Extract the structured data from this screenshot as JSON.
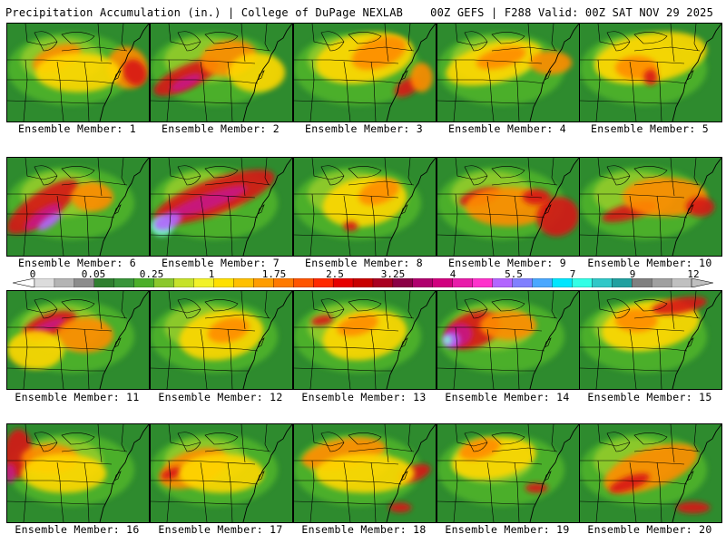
{
  "header": {
    "title_left": "Precipitation Accumulation (in.) | College of DuPage NEXLAB",
    "title_right": "00Z GEFS | F288 Valid: 00Z SAT NOV 29 2025"
  },
  "members": [
    {
      "label": "Ensemble Member: 1",
      "blobs": [
        [
          "#ff8c00",
          0.85,
          0.45,
          0.14,
          0.22,
          -30
        ],
        [
          "#d81818",
          0.9,
          0.5,
          0.08,
          0.14,
          -30
        ],
        [
          "#ff8c00",
          0.35,
          0.35,
          0.18,
          0.12,
          -20
        ],
        [
          "#ffd700",
          0.5,
          0.5,
          0.3,
          0.2,
          0
        ]
      ]
    },
    {
      "label": "Ensemble Member: 2",
      "blobs": [
        [
          "#d81818",
          0.25,
          0.55,
          0.25,
          0.12,
          -25
        ],
        [
          "#c71585",
          0.25,
          0.6,
          0.12,
          0.06,
          -25
        ],
        [
          "#ff8c00",
          0.55,
          0.35,
          0.2,
          0.18,
          -10
        ],
        [
          "#ffd700",
          0.75,
          0.5,
          0.2,
          0.2,
          0
        ]
      ]
    },
    {
      "label": "Ensemble Member: 3",
      "blobs": [
        [
          "#ffd700",
          0.5,
          0.35,
          0.35,
          0.25,
          -10
        ],
        [
          "#ff8c00",
          0.6,
          0.3,
          0.2,
          0.15,
          -20
        ],
        [
          "#d81818",
          0.8,
          0.65,
          0.1,
          0.08,
          -30
        ],
        [
          "#ff8c00",
          0.9,
          0.55,
          0.08,
          0.15,
          0
        ]
      ]
    },
    {
      "label": "Ensemble Member: 4",
      "blobs": [
        [
          "#ffd700",
          0.4,
          0.4,
          0.35,
          0.2,
          -15
        ],
        [
          "#ff8c00",
          0.45,
          0.35,
          0.18,
          0.1,
          -15
        ],
        [
          "#ff8c00",
          0.8,
          0.4,
          0.15,
          0.12,
          0
        ]
      ]
    },
    {
      "label": "Ensemble Member: 5",
      "blobs": [
        [
          "#ffd700",
          0.5,
          0.35,
          0.4,
          0.25,
          -10
        ],
        [
          "#ff8c00",
          0.4,
          0.45,
          0.15,
          0.12,
          0
        ],
        [
          "#d81818",
          0.5,
          0.55,
          0.05,
          0.08,
          0
        ]
      ]
    },
    {
      "label": "Ensemble Member: 6",
      "blobs": [
        [
          "#d81818",
          0.25,
          0.5,
          0.3,
          0.15,
          -35
        ],
        [
          "#c71585",
          0.25,
          0.6,
          0.15,
          0.07,
          -35
        ],
        [
          "#b266ff",
          0.3,
          0.65,
          0.1,
          0.05,
          -35
        ],
        [
          "#ff8c00",
          0.6,
          0.4,
          0.15,
          0.15,
          0
        ]
      ]
    },
    {
      "label": "Ensemble Member: 7",
      "blobs": [
        [
          "#d81818",
          0.45,
          0.4,
          0.45,
          0.18,
          -20
        ],
        [
          "#c71585",
          0.4,
          0.45,
          0.3,
          0.08,
          -20
        ],
        [
          "#7fffd4",
          0.08,
          0.7,
          0.08,
          0.1,
          0
        ],
        [
          "#b266ff",
          0.12,
          0.65,
          0.1,
          0.08,
          -20
        ]
      ]
    },
    {
      "label": "Ensemble Member: 8",
      "blobs": [
        [
          "#ffd700",
          0.5,
          0.45,
          0.3,
          0.25,
          -10
        ],
        [
          "#ff8c00",
          0.6,
          0.35,
          0.15,
          0.12,
          -20
        ],
        [
          "#d81818",
          0.4,
          0.7,
          0.05,
          0.05,
          0
        ]
      ]
    },
    {
      "label": "Ensemble Member: 9",
      "blobs": [
        [
          "#d81818",
          0.3,
          0.4,
          0.15,
          0.08,
          -15
        ],
        [
          "#ff8c00",
          0.5,
          0.5,
          0.3,
          0.2,
          0
        ],
        [
          "#d81818",
          0.85,
          0.6,
          0.15,
          0.2,
          -20
        ],
        [
          "#d81818",
          0.7,
          0.4,
          0.1,
          0.08,
          0
        ]
      ]
    },
    {
      "label": "Ensemble Member: 10",
      "blobs": [
        [
          "#d81818",
          0.35,
          0.55,
          0.2,
          0.08,
          -15
        ],
        [
          "#ff8c00",
          0.6,
          0.4,
          0.3,
          0.2,
          0
        ],
        [
          "#d81818",
          0.85,
          0.5,
          0.1,
          0.1,
          0
        ]
      ]
    },
    {
      "label": "Ensemble Member: 11",
      "blobs": [
        [
          "#d81818",
          0.3,
          0.35,
          0.2,
          0.12,
          -20
        ],
        [
          "#c71585",
          0.3,
          0.35,
          0.12,
          0.05,
          -20
        ],
        [
          "#ff8c00",
          0.55,
          0.45,
          0.2,
          0.18,
          0
        ],
        [
          "#ffd700",
          0.2,
          0.6,
          0.2,
          0.2,
          0
        ]
      ]
    },
    {
      "label": "Ensemble Member: 12",
      "blobs": [
        [
          "#ffd700",
          0.5,
          0.45,
          0.3,
          0.25,
          -10
        ],
        [
          "#ff8c00",
          0.55,
          0.4,
          0.15,
          0.12,
          -15
        ]
      ]
    },
    {
      "label": "Ensemble Member: 13",
      "blobs": [
        [
          "#ffd700",
          0.5,
          0.45,
          0.3,
          0.25,
          -10
        ],
        [
          "#ff8c00",
          0.45,
          0.35,
          0.15,
          0.1,
          -15
        ],
        [
          "#d81818",
          0.2,
          0.3,
          0.08,
          0.05,
          -10
        ]
      ]
    },
    {
      "label": "Ensemble Member: 14",
      "blobs": [
        [
          "#d81818",
          0.25,
          0.4,
          0.2,
          0.18,
          -20
        ],
        [
          "#c71585",
          0.15,
          0.45,
          0.1,
          0.12,
          -20
        ],
        [
          "#b266ff",
          0.1,
          0.5,
          0.06,
          0.08,
          -20
        ],
        [
          "#7fffd4",
          0.07,
          0.5,
          0.03,
          0.05,
          0
        ],
        [
          "#ff8c00",
          0.5,
          0.35,
          0.2,
          0.15,
          0
        ]
      ]
    },
    {
      "label": "Ensemble Member: 15",
      "blobs": [
        [
          "#ffd700",
          0.5,
          0.35,
          0.35,
          0.25,
          -10
        ],
        [
          "#d81818",
          0.7,
          0.15,
          0.2,
          0.08,
          -10
        ],
        [
          "#ff8c00",
          0.4,
          0.3,
          0.15,
          0.12,
          0
        ]
      ]
    },
    {
      "label": "Ensemble Member: 16",
      "blobs": [
        [
          "#d81818",
          0.08,
          0.3,
          0.1,
          0.25,
          0
        ],
        [
          "#c71585",
          0.02,
          0.5,
          0.04,
          0.1,
          0
        ],
        [
          "#ff8c00",
          0.3,
          0.35,
          0.2,
          0.15,
          0
        ],
        [
          "#ffd700",
          0.4,
          0.5,
          0.3,
          0.2,
          0
        ]
      ]
    },
    {
      "label": "Ensemble Member: 17",
      "blobs": [
        [
          "#ff8c00",
          0.3,
          0.45,
          0.25,
          0.18,
          -20
        ],
        [
          "#d81818",
          0.15,
          0.5,
          0.08,
          0.05,
          -20
        ],
        [
          "#ffd700",
          0.5,
          0.5,
          0.3,
          0.2,
          0
        ]
      ]
    },
    {
      "label": "Ensemble Member: 18",
      "blobs": [
        [
          "#ff8c00",
          0.35,
          0.3,
          0.3,
          0.15,
          -10
        ],
        [
          "#d81818",
          0.85,
          0.5,
          0.12,
          0.08,
          -20
        ],
        [
          "#d81818",
          0.75,
          0.85,
          0.08,
          0.05,
          0
        ],
        [
          "#ffd700",
          0.5,
          0.5,
          0.35,
          0.2,
          0
        ]
      ]
    },
    {
      "label": "Ensemble Member: 19",
      "blobs": [
        [
          "#ffd700",
          0.4,
          0.35,
          0.3,
          0.2,
          -10
        ],
        [
          "#ff8c00",
          0.3,
          0.25,
          0.15,
          0.1,
          -15
        ],
        [
          "#d81818",
          0.7,
          0.65,
          0.08,
          0.05,
          0
        ]
      ]
    },
    {
      "label": "Ensemble Member: 20",
      "blobs": [
        [
          "#ff8c00",
          0.5,
          0.45,
          0.35,
          0.2,
          -20
        ],
        [
          "#d81818",
          0.35,
          0.6,
          0.15,
          0.07,
          -20
        ],
        [
          "#d81818",
          0.8,
          0.85,
          0.12,
          0.06,
          0
        ]
      ]
    }
  ],
  "colorbar": {
    "labels": [
      "0",
      "0.05",
      "0.25",
      "1",
      "1.75",
      "2.5",
      "3.25",
      "4",
      "5.5",
      "7",
      "9",
      "12"
    ],
    "colors": [
      "#dcdcdc",
      "#b4b4b4",
      "#8c8c8c",
      "#2f7f2f",
      "#39953a",
      "#4caf2a",
      "#8bc82c",
      "#c6e22a",
      "#f2f22a",
      "#ffe000",
      "#ffc000",
      "#ff9d00",
      "#ff7a00",
      "#ff5500",
      "#ff2a00",
      "#e60000",
      "#c80000",
      "#aa0020",
      "#8b0045",
      "#b0006e",
      "#d1007f",
      "#e81caa",
      "#ff33cc",
      "#b266ff",
      "#8080ff",
      "#4aa8ff",
      "#00e6ff",
      "#33ffe6",
      "#30c8c8",
      "#20a0a0",
      "#808080",
      "#a0a0a0",
      "#c0c0c0"
    ]
  },
  "colors": {
    "base_green": "#2e8b2e",
    "mid_green": "#4caf2a",
    "light_green": "#8bc82c",
    "outline": "#000000"
  }
}
